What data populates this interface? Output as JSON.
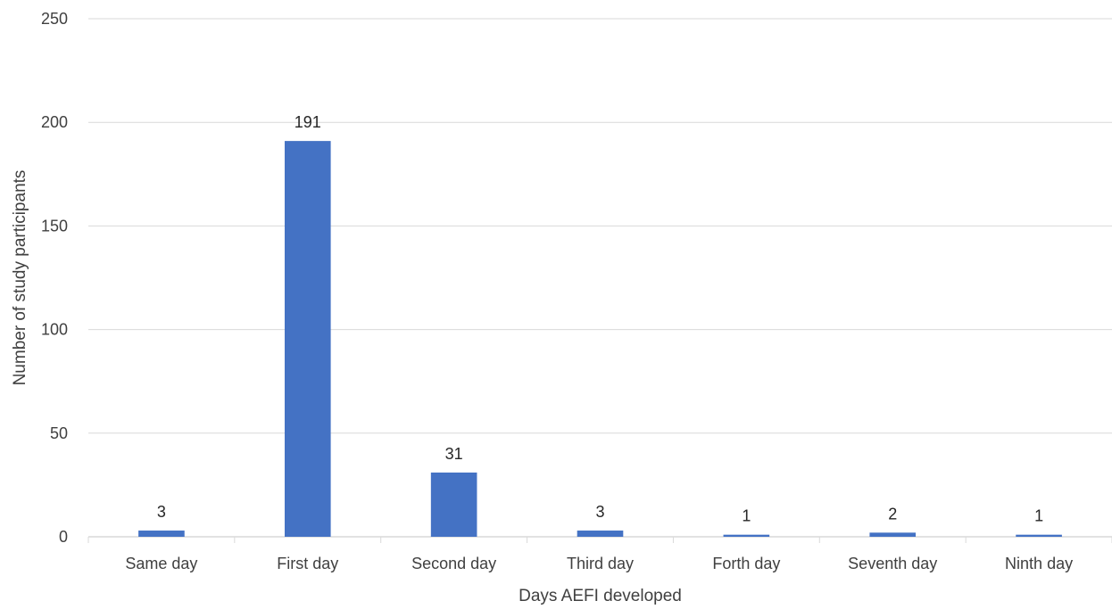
{
  "chart_data": {
    "type": "bar",
    "title": "",
    "xlabel": "Days AEFI developed",
    "ylabel": "Number of study participants",
    "categories": [
      "Same day",
      "First day",
      "Second day",
      "Third day",
      "Forth day",
      "Seventh day",
      "Ninth day"
    ],
    "values": [
      3,
      191,
      31,
      3,
      1,
      2,
      1
    ],
    "data_labels": [
      "3",
      "191",
      "31",
      "3",
      "1",
      "2",
      "1"
    ],
    "ylim": [
      0,
      250
    ],
    "yticks": [
      0,
      50,
      100,
      150,
      200,
      250
    ],
    "grid": true,
    "legend": "none",
    "colors": {
      "bar": "#4472C4",
      "grid": "#d9d9d9",
      "axis": "#d9d9d9",
      "text": "#404040"
    }
  }
}
